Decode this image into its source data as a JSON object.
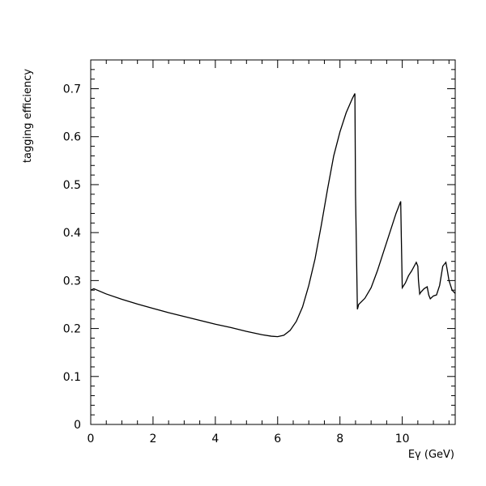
{
  "chart_data": {
    "type": "line",
    "title": "",
    "xlabel": "Eγ (GeV)",
    "ylabel": "tagging efficiency",
    "xlim": [
      0,
      11.7
    ],
    "ylim": [
      0,
      0.76
    ],
    "xticks_major": [
      0,
      2,
      4,
      6,
      8,
      10
    ],
    "xticks_major_labels": [
      "0",
      "2",
      "4",
      "6",
      "8",
      "10"
    ],
    "xticks_minor_step": 0.5,
    "yticks_major": [
      0,
      0.1,
      0.2,
      0.3,
      0.4,
      0.5,
      0.6,
      0.7
    ],
    "yticks_major_labels": [
      "0",
      "0.1",
      "0.2",
      "0.3",
      "0.4",
      "0.5",
      "0.6",
      "0.7"
    ],
    "yticks_minor_step": 0.02,
    "grid": false,
    "series": [
      {
        "x": [
          0,
          0.1,
          0.5,
          1,
          1.5,
          2,
          2.5,
          3,
          3.5,
          4,
          4.5,
          5,
          5.5,
          5.8,
          6.0,
          6.2,
          6.4,
          6.6,
          6.8,
          7.0,
          7.2,
          7.4,
          7.6,
          7.8,
          8.0,
          8.2,
          8.4,
          8.48,
          8.5,
          8.56,
          8.6,
          8.8,
          9.0,
          9.2,
          9.4,
          9.6,
          9.8,
          9.95,
          9.97,
          10.0,
          10.1,
          10.2,
          10.3,
          10.45,
          10.5,
          10.52,
          10.56,
          10.6,
          10.7,
          10.8,
          10.85,
          10.9,
          11.0,
          11.1,
          11.2,
          11.3,
          11.4,
          11.45,
          11.5,
          11.6,
          11.7
        ],
        "y": [
          0.28,
          0.283,
          0.272,
          0.261,
          0.251,
          0.242,
          0.233,
          0.225,
          0.217,
          0.209,
          0.202,
          0.194,
          0.187,
          0.184,
          0.183,
          0.186,
          0.196,
          0.215,
          0.245,
          0.29,
          0.345,
          0.415,
          0.49,
          0.56,
          0.61,
          0.65,
          0.68,
          0.69,
          0.48,
          0.24,
          0.25,
          0.263,
          0.285,
          0.32,
          0.36,
          0.4,
          0.44,
          0.465,
          0.39,
          0.285,
          0.295,
          0.31,
          0.32,
          0.338,
          0.33,
          0.3,
          0.272,
          0.276,
          0.283,
          0.287,
          0.27,
          0.262,
          0.268,
          0.27,
          0.29,
          0.33,
          0.338,
          0.32,
          0.3,
          0.28,
          0.273
        ]
      }
    ]
  }
}
